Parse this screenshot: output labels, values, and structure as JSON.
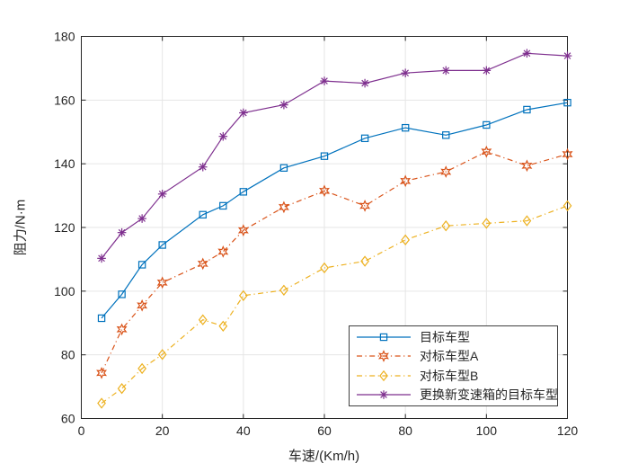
{
  "chart_data": {
    "type": "line",
    "title": "",
    "xlabel": "车速/(Km/h)",
    "ylabel": "阻力/N·m",
    "xlim": [
      0,
      120
    ],
    "ylim": [
      60,
      180
    ],
    "xticks": [
      0,
      20,
      40,
      60,
      80,
      100,
      120
    ],
    "yticks": [
      60,
      80,
      100,
      120,
      140,
      160,
      180
    ],
    "grid": true,
    "legend_position": "inside-lower-right",
    "x": [
      5,
      10,
      15,
      20,
      30,
      35,
      40,
      50,
      60,
      70,
      80,
      90,
      100,
      110,
      120
    ],
    "series": [
      {
        "name": "目标车型",
        "color": "#0072BD",
        "line": "solid",
        "marker": "square",
        "values": [
          91.5,
          99.0,
          108.3,
          114.5,
          124.0,
          126.8,
          131.2,
          138.7,
          142.4,
          148.0,
          151.3,
          149.0,
          152.2,
          157.0,
          159.2
        ]
      },
      {
        "name": "对标车型A",
        "color": "#D95319",
        "line": "dashdot",
        "marker": "hexagram",
        "values": [
          74.3,
          88.0,
          95.5,
          102.7,
          108.6,
          112.4,
          119.1,
          126.4,
          131.5,
          126.8,
          134.6,
          137.5,
          143.8,
          139.4,
          143.0
        ]
      },
      {
        "name": "对标车型B",
        "color": "#EDB120",
        "line": "dashdot",
        "marker": "diamond",
        "values": [
          64.8,
          69.4,
          75.7,
          80.1,
          91.0,
          89.0,
          98.6,
          100.3,
          107.3,
          109.4,
          116.1,
          120.5,
          121.3,
          122.1,
          126.8
        ]
      },
      {
        "name": "更换新变速箱的目标车型",
        "color": "#7E2F8E",
        "line": "solid",
        "marker": "asterisk",
        "values": [
          110.3,
          118.4,
          122.8,
          130.5,
          139.0,
          148.6,
          156.0,
          158.5,
          166.0,
          165.3,
          168.5,
          169.3,
          169.3,
          174.7,
          173.9
        ]
      }
    ]
  },
  "style": {
    "axis_color": "#262626",
    "grid_color": "#e6e6e6",
    "background": "#ffffff",
    "tick_font_px": 14
  }
}
